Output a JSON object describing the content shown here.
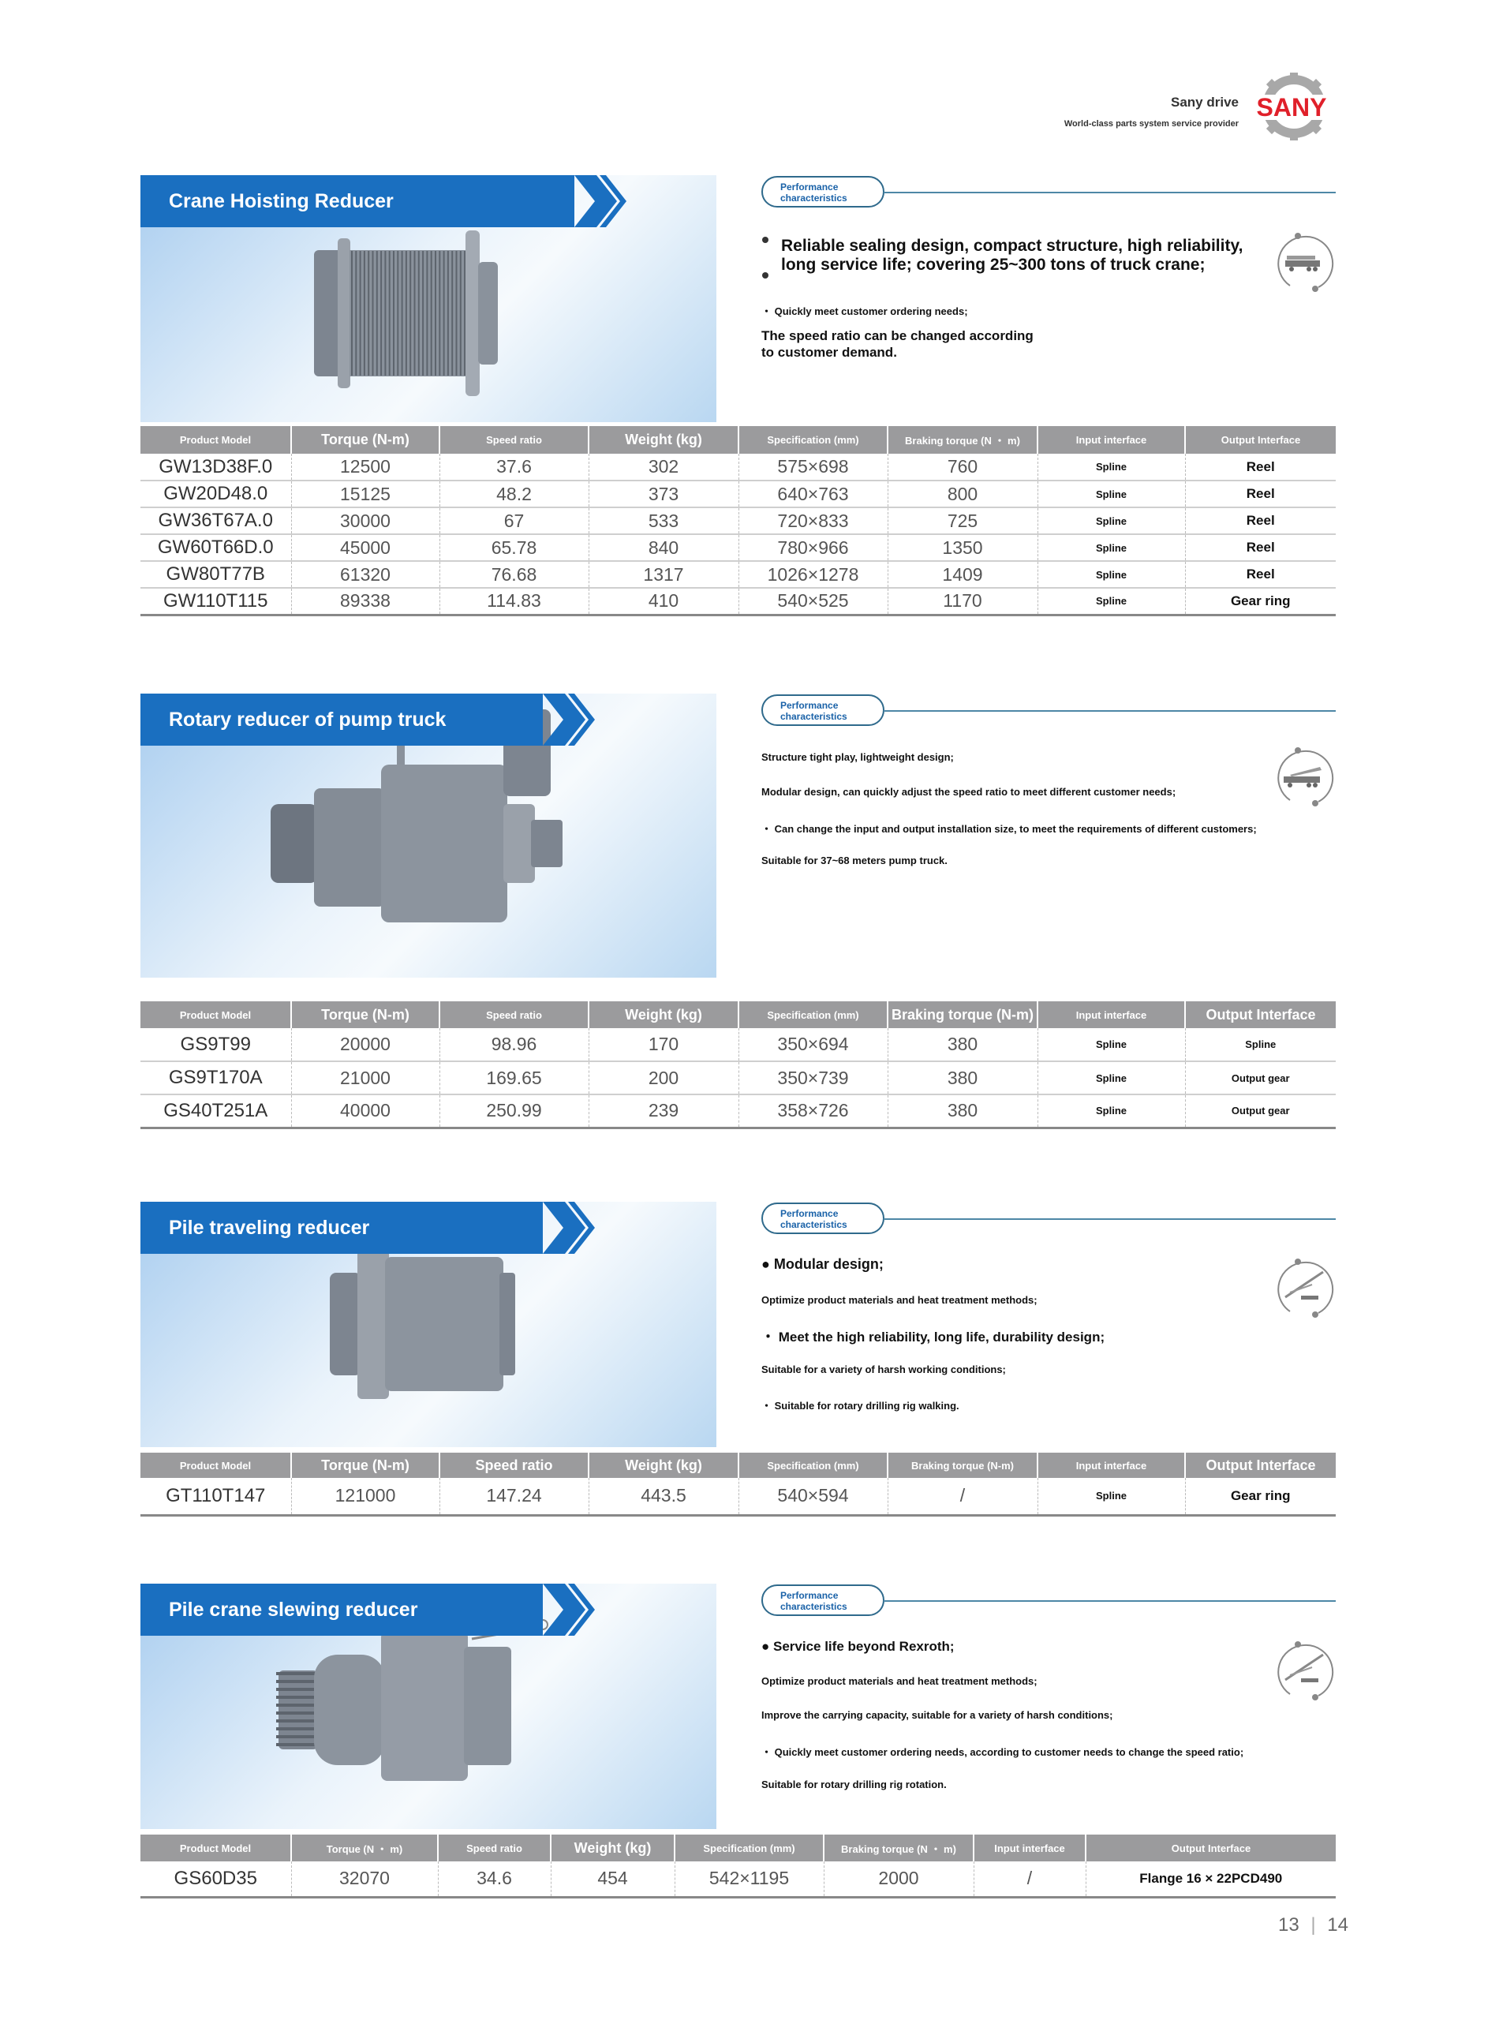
{
  "header": {
    "brand_title": "Sany drive",
    "tagline": "World-class parts system service provider",
    "logo_text": "SANY",
    "logo_color": "#e0202a"
  },
  "colors": {
    "banner": "#1a6fc0",
    "table_header": "#9b9b9d",
    "pill_text": "#1a62a8"
  },
  "sections": [
    {
      "title": "Crane Hoisting Reducer",
      "pill": [
        "Performance",
        "characteristics"
      ],
      "icon": "truck-crane-icon",
      "features": [
        "Reliable sealing design, compact structure, high reliability,",
        "long service life; covering 25~300 tons of truck crane;",
        "・ Quickly meet customer ordering needs;",
        "The speed ratio can be changed according",
        "to customer demand."
      ],
      "table": {
        "headers": [
          "Product Model",
          "Torque (N-m)",
          "Speed ratio",
          "Weight (kg)",
          "Specification (mm)",
          "Braking torque (N ・ m)",
          "Input interface",
          "Output Interface"
        ],
        "rows": [
          [
            "GW13D38F.0",
            "12500",
            "37.6",
            "302",
            "575×698",
            "760",
            "Spline",
            "Reel"
          ],
          [
            "GW20D48.0",
            "15125",
            "48.2",
            "373",
            "640×763",
            "800",
            "Spline",
            "Reel"
          ],
          [
            "GW36T67A.0",
            "30000",
            "67",
            "533",
            "720×833",
            "725",
            "Spline",
            "Reel"
          ],
          [
            "GW60T66D.0",
            "45000",
            "65.78",
            "840",
            "780×966",
            "1350",
            "Spline",
            "Reel"
          ],
          [
            "GW80T77B",
            "61320",
            "76.68",
            "1317",
            "1026×1278",
            "1409",
            "Spline",
            "Reel"
          ],
          [
            "GW110T115",
            "89338",
            "114.83",
            "410",
            "540×525",
            "1170",
            "Spline",
            "Gear ring"
          ]
        ]
      }
    },
    {
      "title": "Rotary reducer of pump truck",
      "pill": [
        "Performance",
        "characteristics"
      ],
      "icon": "pump-truck-icon",
      "features": [
        "Structure tight play, lightweight design;",
        "Modular design, can quickly adjust the speed ratio to meet different customer needs;",
        "・ Can change the input and output installation size, to meet the requirements of different customers;",
        "Suitable for 37~68 meters pump truck."
      ],
      "table": {
        "headers": [
          "Product Model",
          "Torque (N-m)",
          "Speed ratio",
          "Weight (kg)",
          "Specification (mm)",
          "Braking torque (N-m)",
          "Input interface",
          "Output Interface"
        ],
        "rows": [
          [
            "GS9T99",
            "20000",
            "98.96",
            "170",
            "350×694",
            "380",
            "Spline",
            "Spline"
          ],
          [
            "GS9T170A",
            "21000",
            "169.65",
            "200",
            "350×739",
            "380",
            "Spline",
            "Output gear"
          ],
          [
            "GS40T251A",
            "40000",
            "250.99",
            "239",
            "358×726",
            "380",
            "Spline",
            "Output gear"
          ]
        ]
      }
    },
    {
      "title": "Pile traveling reducer",
      "pill": [
        "Performance",
        "characteristics"
      ],
      "icon": "drilling-rig-icon",
      "features": [
        "● Modular design;",
        "Optimize product materials and heat treatment methods;",
        "・ Meet the high reliability, long life, durability design;",
        "Suitable for a variety of harsh working conditions;",
        "・ Suitable for rotary drilling rig walking."
      ],
      "table": {
        "headers": [
          "Product Model",
          "Torque (N-m)",
          "Speed ratio",
          "Weight (kg)",
          "Specification (mm)",
          "Braking torque (N-m)",
          "Input interface",
          "Output Interface"
        ],
        "rows": [
          [
            "GT110T147",
            "121000",
            "147.24",
            "443.5",
            "540×594",
            "/",
            "Spline",
            "Gear ring"
          ]
        ]
      }
    },
    {
      "title": "Pile crane slewing reducer",
      "pill": [
        "Performance",
        "characteristics"
      ],
      "icon": "drilling-rig-icon",
      "features": [
        "●  Service life beyond Rexroth;",
        "Optimize product materials and heat treatment methods;",
        "Improve the carrying capacity, suitable for a variety of harsh conditions;",
        "・ Quickly meet customer ordering needs, according to customer needs to change the speed ratio;",
        "Suitable for rotary drilling rig rotation."
      ],
      "table": {
        "headers": [
          "Product Model",
          "Torque (N ・ m)",
          "Speed ratio",
          "Weight (kg)",
          "Specification (mm)",
          "Braking torque (N ・ m)",
          "Input interface",
          "Output Interface"
        ],
        "rows": [
          [
            "GS60D35",
            "32070",
            "34.6",
            "454",
            "542×1195",
            "2000",
            "/",
            "Flange 16 × 22PCD490"
          ]
        ]
      }
    }
  ],
  "page_numbers": {
    "left": "13",
    "right": "14"
  }
}
